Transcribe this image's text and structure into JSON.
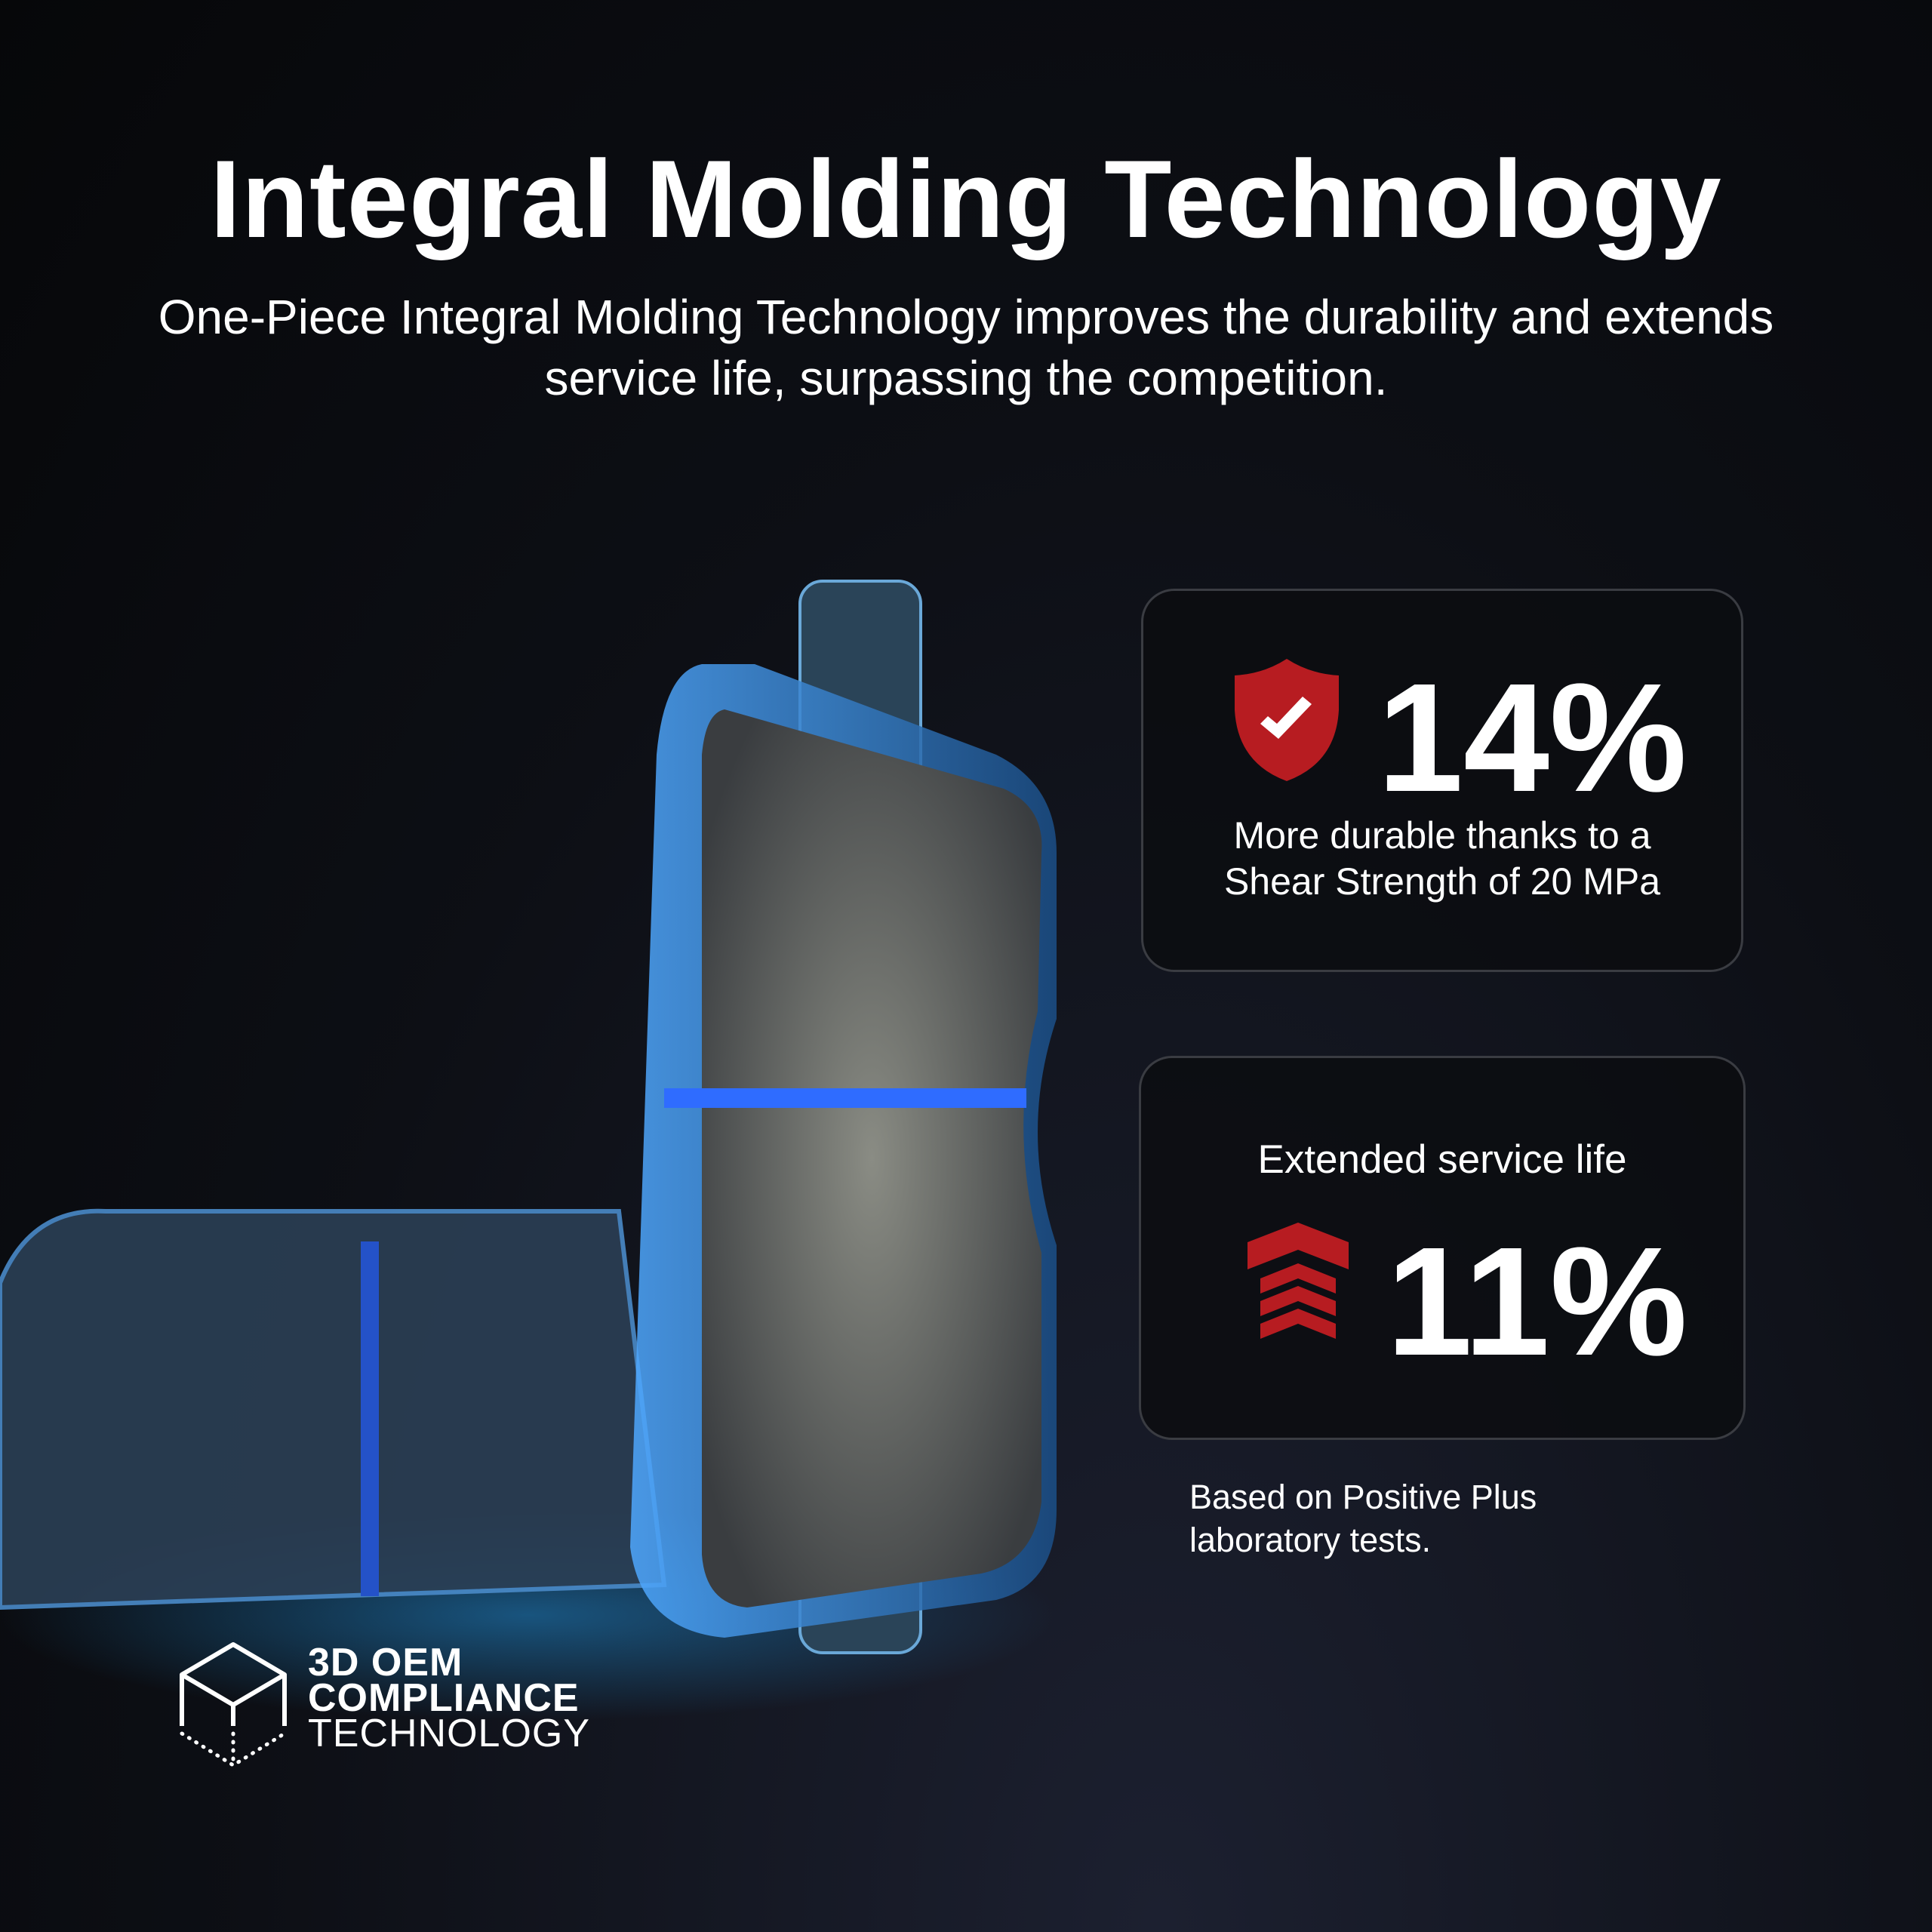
{
  "header": {
    "title": "Integral Molding Technology",
    "subtitle": "One-Piece Integral Molding Technology improves the durability and extends service life, surpassing the competition."
  },
  "cards": [
    {
      "icon": "shield-check-icon",
      "value": "14%",
      "description_line1": "More durable thanks to a",
      "description_line2": "Shear Strength of 20 MPa"
    },
    {
      "icon": "chevron-up-arrows-icon",
      "label": "Extended service life",
      "value": "11%"
    }
  ],
  "footnote": {
    "line1": "Based on Positive Plus",
    "line2": "laboratory tests."
  },
  "logo": {
    "line1": "3D OEM",
    "line2": "COMPLIANCE",
    "line3": "TECHNOLOGY"
  },
  "colors": {
    "accent_red": "#b71c21",
    "glow_blue": "#2f8cff",
    "background": "#0b0c10"
  }
}
